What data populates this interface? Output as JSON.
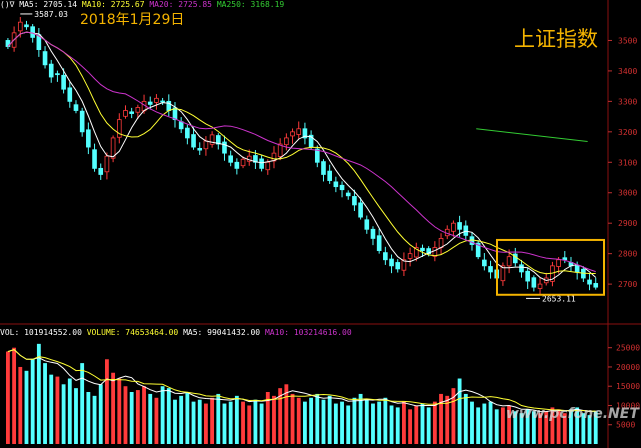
{
  "header": {
    "prefix": "()∇",
    "ma5_label": "MA5: 2705.14",
    "ma10_label": "MA10: 2725.67",
    "ma20_label": "MA20: 2725.85",
    "ma250_label": "MA250: 3168.19"
  },
  "vol_header": {
    "vol_label": "VOL: 101914552.00",
    "volume_label": "VOLUME: 74653464.00",
    "ma5_label": "MA5: 99041432.00",
    "ma10_label": "MA10: 103214616.00"
  },
  "colors": {
    "up": "#ff3b3b",
    "down": "#54ffff",
    "ma5": "#ffffff",
    "ma10": "#ffff33",
    "ma20": "#cc33cc",
    "ma250": "#33cc33",
    "highlight_box": "#f5b400",
    "title_text": "#f5b400"
  },
  "annotations": {
    "date_text": "2018年1月29日",
    "index_name": "上证指数",
    "high_value": "3587.03",
    "low_value": "2653.11",
    "watermark": "www.pcfone.NET"
  },
  "chart_data": [
    {
      "type": "candlestick",
      "name": "price",
      "y_ticks": [
        2700,
        2800,
        2900,
        3000,
        3100,
        3200,
        3300,
        3400,
        3500
      ],
      "ylim": [
        2615,
        3600
      ],
      "closes": [
        3480,
        3525,
        3560,
        3545,
        3510,
        3470,
        3420,
        3380,
        3390,
        3340,
        3300,
        3270,
        3200,
        3150,
        3080,
        3060,
        3120,
        3180,
        3240,
        3270,
        3260,
        3280,
        3300,
        3290,
        3310,
        3300,
        3270,
        3240,
        3210,
        3180,
        3150,
        3140,
        3170,
        3190,
        3160,
        3130,
        3100,
        3080,
        3110,
        3120,
        3100,
        3080,
        3100,
        3130,
        3160,
        3180,
        3200,
        3210,
        3180,
        3150,
        3100,
        3060,
        3040,
        3020,
        3010,
        2990,
        2960,
        2920,
        2880,
        2850,
        2810,
        2780,
        2760,
        2750,
        2780,
        2800,
        2820,
        2810,
        2800,
        2820,
        2850,
        2880,
        2900,
        2880,
        2860,
        2830,
        2790,
        2760,
        2740,
        2720,
        2760,
        2790,
        2770,
        2740,
        2710,
        2690,
        2700,
        2720,
        2760,
        2780,
        2780,
        2760,
        2740,
        2720,
        2700,
        2690
      ],
      "ma_series": [
        {
          "name": "MA5",
          "last_value": 2705.14
        },
        {
          "name": "MA10",
          "last_value": 2725.67
        },
        {
          "name": "MA20",
          "last_value": 2725.85
        },
        {
          "name": "MA250",
          "last_value": 3168.19
        }
      ]
    },
    {
      "type": "bar",
      "name": "volume",
      "y_ticks": [
        5000,
        10000,
        15000,
        20000,
        25000
      ],
      "ylim": [
        0,
        27000
      ],
      "values": [
        24000,
        25000,
        20000,
        19000,
        22000,
        26000,
        21000,
        18000,
        17500,
        15500,
        17000,
        14500,
        21000,
        13500,
        12500,
        15500,
        22000,
        18500,
        17000,
        15000,
        13500,
        14000,
        15000,
        13000,
        12000,
        15000,
        14500,
        11500,
        12500,
        13500,
        11000,
        11500,
        10500,
        12000,
        13000,
        10500,
        11000,
        12500,
        11000,
        10000,
        11500,
        10500,
        13500,
        12500,
        14500,
        15500,
        13000,
        12000,
        11000,
        12000,
        13000,
        11500,
        12500,
        10500,
        11000,
        10000,
        12000,
        13000,
        11500,
        10500,
        11000,
        12000,
        10000,
        9500,
        11000,
        9000,
        10000,
        10500,
        9500,
        11000,
        13000,
        12500,
        14500,
        17000,
        13000,
        11000,
        9500,
        10500,
        11000,
        9000,
        9500,
        10000,
        8500,
        8000,
        9000,
        8500,
        8000,
        8500,
        9500,
        9000,
        8000,
        9000,
        9500,
        8000,
        7500,
        8500
      ]
    }
  ]
}
